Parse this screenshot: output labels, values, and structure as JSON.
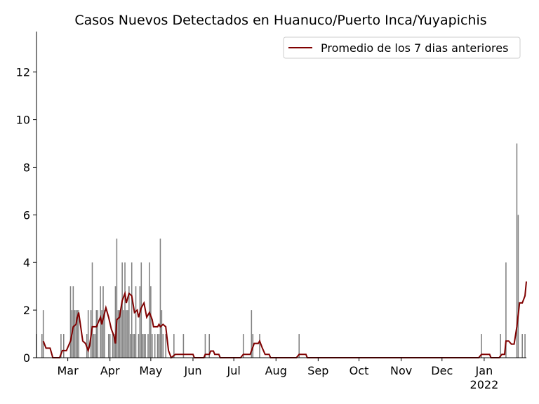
{
  "chart_data": {
    "type": "bar",
    "title": "Casos Nuevos Detectados en Huanuco/Puerto Inca/Yuyapichis",
    "bars": {
      "color": "#808080",
      "x": [
        36,
        40,
        41,
        54,
        56,
        61,
        62,
        63,
        64,
        65,
        66,
        67,
        73,
        74,
        76,
        77,
        78,
        79,
        80,
        81,
        83,
        84,
        85,
        86,
        89,
        90,
        92,
        93,
        94,
        95,
        96,
        97,
        98,
        99,
        100,
        101,
        102,
        103,
        104,
        105,
        106,
        107,
        108,
        109,
        111,
        112,
        113,
        114,
        115,
        116,
        118,
        119,
        120,
        121,
        123,
        125,
        126,
        127,
        128,
        129,
        131,
        137,
        144,
        160,
        163,
        188,
        194,
        195,
        200,
        229,
        363,
        377,
        381,
        389,
        390,
        393,
        395
      ],
      "values": [
        1,
        1,
        2,
        1,
        1,
        3,
        2,
        3,
        2,
        2,
        2,
        2,
        1,
        2,
        2,
        4,
        1,
        1,
        2,
        2,
        3,
        2,
        3,
        2,
        1,
        1,
        1,
        1,
        3,
        5,
        2,
        2,
        2,
        4,
        2,
        4,
        2,
        2,
        3,
        1,
        4,
        1,
        1,
        3,
        1,
        3,
        4,
        1,
        1,
        1,
        1,
        4,
        3,
        1,
        1,
        1,
        1,
        5,
        2,
        1,
        1,
        1,
        1,
        1,
        1,
        1,
        2,
        1,
        1,
        1,
        1,
        1,
        4,
        9,
        6,
        1,
        1
      ]
    },
    "series": [
      {
        "name": "Promedio de los 7 dias anteriores",
        "color": "#800000",
        "x": [
          41,
          43,
          46,
          48,
          53,
          55,
          58,
          61,
          63,
          65,
          66,
          67,
          70,
          72,
          74,
          75,
          77,
          80,
          83,
          84,
          87,
          89,
          91,
          93,
          94,
          95,
          97,
          99,
          101,
          102,
          104,
          106,
          108,
          110,
          111,
          113,
          115,
          117,
          119,
          121,
          122,
          125,
          126,
          127,
          129,
          131,
          133,
          135,
          138,
          151,
          152,
          159,
          160,
          163,
          164,
          166,
          167,
          170,
          171,
          186,
          188,
          193,
          196,
          199,
          200,
          202,
          204,
          207,
          208,
          227,
          229,
          234,
          235,
          361,
          363,
          369,
          370,
          376,
          378,
          380,
          381,
          383,
          385,
          387,
          389,
          391,
          393,
          395,
          396
        ],
        "values": [
          0.7,
          0.4,
          0.4,
          0,
          0,
          0.3,
          0.3,
          0.7,
          1.3,
          1.4,
          1.7,
          1.9,
          0.7,
          0.6,
          0.3,
          0.5,
          1.3,
          1.3,
          1.7,
          1.4,
          2.1,
          1.7,
          1.2,
          0.9,
          0.6,
          1.6,
          1.7,
          2.4,
          2.7,
          2.3,
          2.7,
          2.6,
          1.9,
          2.0,
          1.7,
          2.1,
          2.3,
          1.7,
          1.9,
          1.6,
          1.3,
          1.3,
          1.4,
          1.3,
          1.4,
          1.3,
          0.3,
          0,
          0.14,
          0.14,
          0,
          0,
          0.14,
          0.14,
          0.28,
          0.28,
          0.14,
          0.14,
          0,
          0,
          0.14,
          0.14,
          0.6,
          0.6,
          0.7,
          0.4,
          0.14,
          0.14,
          0,
          0,
          0.14,
          0.14,
          0,
          0,
          0.14,
          0.14,
          0,
          0,
          0.14,
          0.14,
          0.7,
          0.7,
          0.57,
          0.57,
          1.3,
          2.3,
          2.3,
          2.6,
          3.2
        ]
      }
    ],
    "xlim": [
      36,
      396
    ],
    "xticks": [
      {
        "value": 59,
        "label": "Mar"
      },
      {
        "value": 90,
        "label": "Apr"
      },
      {
        "value": 120,
        "label": "May"
      },
      {
        "value": 151,
        "label": "Jun"
      },
      {
        "value": 181,
        "label": "Jul"
      },
      {
        "value": 212,
        "label": "Aug"
      },
      {
        "value": 243,
        "label": "Sep"
      },
      {
        "value": 273,
        "label": "Oct"
      },
      {
        "value": 304,
        "label": "Nov"
      },
      {
        "value": 334,
        "label": "Dec"
      },
      {
        "value": 365,
        "label": "Jan\n2022"
      }
    ],
    "ylim": [
      0,
      13.7
    ],
    "yticks": [
      0,
      2,
      4,
      6,
      8,
      10,
      12
    ],
    "legend": "upper right"
  }
}
